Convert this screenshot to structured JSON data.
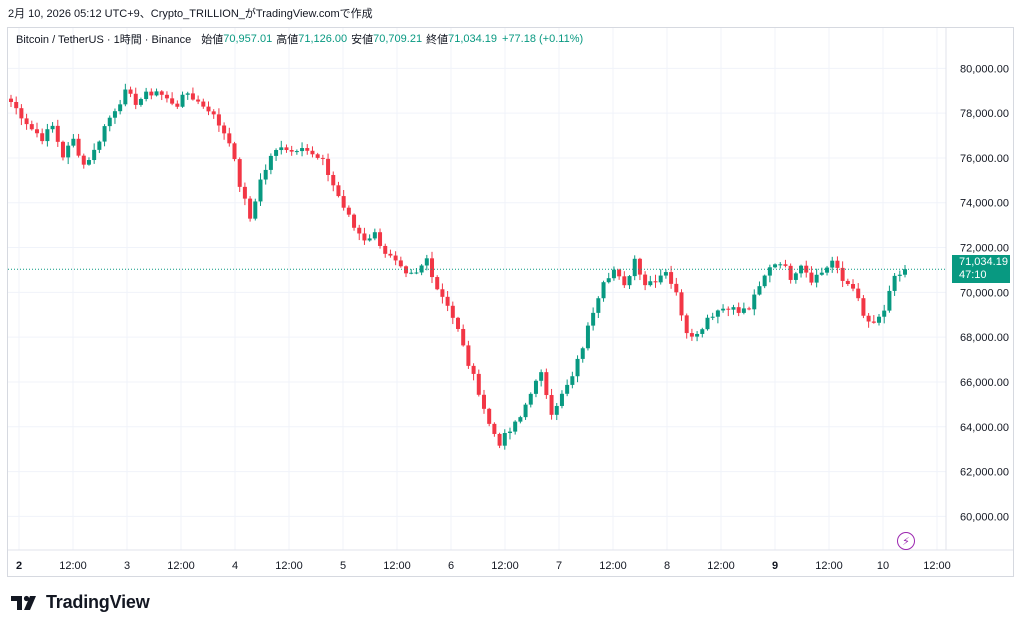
{
  "header": {
    "caption": "2月 10, 2026 05:12 UTC+9、Crypto_TRILLION_がTradingView.comで作成"
  },
  "legend": {
    "symbol": "Bitcoin / TetherUS · 1時間 · Binance",
    "open_label": "始値",
    "open_value": "70,957.01",
    "high_label": "高値",
    "high_value": "71,126.00",
    "low_label": "安値",
    "low_value": "70,709.21",
    "close_label": "終値",
    "close_value": "71,034.19",
    "change": "+77.18 (+0.11%)"
  },
  "price_tag": {
    "price": "71,034.19",
    "countdown": "47:10"
  },
  "brand": {
    "name": "TradingView",
    "icon": "tradingview-logo-icon"
  },
  "alert_icon": "lightning-bolt-icon",
  "colors": {
    "up": "#089981",
    "down": "#f23645",
    "text": "#131722",
    "grid": "#f0f3fa",
    "bolt": "#9c27b0"
  },
  "chart_data": {
    "type": "candlestick",
    "title": "Bitcoin / TetherUS · 1時間 · Binance",
    "y_ticks": [
      "80,000.00",
      "78,000.00",
      "76,000.00",
      "74,000.00",
      "72,000.00",
      "70,000.00",
      "68,000.00",
      "66,000.00",
      "64,000.00",
      "62,000.00",
      "60,000.00"
    ],
    "x_ticks": [
      "2",
      "12:00",
      "3",
      "12:00",
      "4",
      "12:00",
      "5",
      "12:00",
      "6",
      "12:00",
      "7",
      "12:00",
      "8",
      "12:00",
      "9",
      "12:00",
      "10",
      "12:00"
    ],
    "ylim": [
      58500,
      81800
    ],
    "last_price": 71034.19,
    "path_closes": [
      78500,
      77900,
      77300,
      76900,
      77400,
      76100,
      76800,
      75700,
      76300,
      77400,
      78200,
      78900,
      78500,
      78800,
      79000,
      78600,
      78400,
      78900,
      78500,
      78200,
      77500,
      76800,
      74800,
      73300,
      75000,
      76000,
      76600,
      76300,
      76600,
      76100,
      75800,
      74800,
      73800,
      72900,
      72400,
      72600,
      71800,
      71300,
      70700,
      70800,
      71500,
      70200,
      69500,
      68300,
      66800,
      65600,
      64100,
      63300,
      63800,
      64400,
      65600,
      66300,
      64700,
      65400,
      66200,
      67600,
      69200,
      70600,
      71000,
      70200,
      71500,
      70400,
      70600,
      71000,
      69900,
      68300,
      68100,
      68900,
      69200,
      69400,
      69100,
      69300,
      70200,
      71200,
      71400,
      70700,
      71300,
      70600,
      70900,
      71400,
      70500,
      70300,
      68900,
      68500,
      69200,
      70600,
      71034
    ]
  }
}
